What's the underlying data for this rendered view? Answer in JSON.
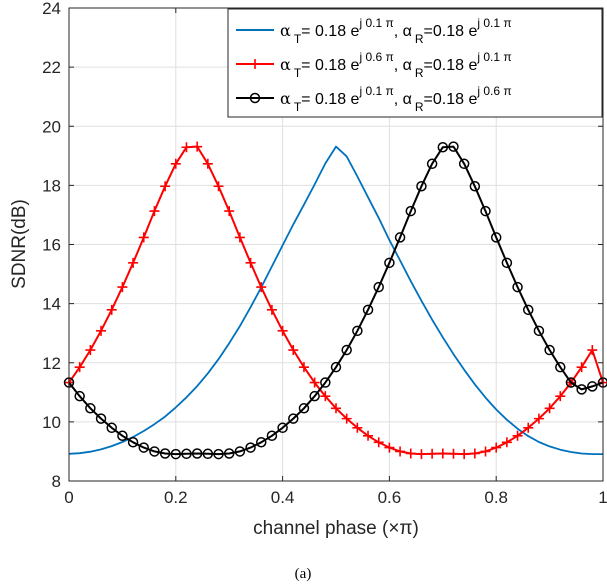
{
  "chart_data": {
    "type": "line",
    "xlabel": "channel phase (×π)",
    "ylabel": "SDNR(dB)",
    "caption": "(a)",
    "xlim": [
      0,
      1
    ],
    "ylim": [
      8,
      24
    ],
    "x_ticks": [
      "0",
      "0.2",
      "0.4",
      "0.6",
      "0.8",
      "1"
    ],
    "y_ticks": [
      "8",
      "10",
      "12",
      "14",
      "16",
      "18",
      "20",
      "22",
      "24"
    ],
    "grid": true,
    "legend_position": "top-right",
    "legend": [
      {
        "alpha": "α",
        "sub1": "T",
        "mid": "= 0.18 e",
        "sup1": "j 0.1 π",
        "sep": ", α",
        "sub2": "R",
        "mid2": "=0.18 e",
        "sup2": "j 0.1 π"
      },
      {
        "alpha": "α",
        "sub1": "T",
        "mid": "= 0.18 e",
        "sup1": "j 0.6 π",
        "sep": ", α",
        "sub2": "R",
        "mid2": "=0.18 e",
        "sup2": "j 0.1 π"
      },
      {
        "alpha": "α",
        "sub1": "T",
        "mid": "= 0.18 e",
        "sup1": "j 0.1 π",
        "sep": ", α",
        "sub2": "R",
        "mid2": "=0.18 e",
        "sup2": "j 0.6 π"
      }
    ],
    "x": [
      0,
      0.02,
      0.04,
      0.06,
      0.08,
      0.1,
      0.12,
      0.14,
      0.16,
      0.18,
      0.2,
      0.22,
      0.24,
      0.26,
      0.28,
      0.3,
      0.32,
      0.34,
      0.36,
      0.38,
      0.4,
      0.42,
      0.44,
      0.46,
      0.48,
      0.5,
      0.52,
      0.54,
      0.56,
      0.58,
      0.6,
      0.62,
      0.64,
      0.66,
      0.68,
      0.7,
      0.72,
      0.74,
      0.76,
      0.78,
      0.8,
      0.82,
      0.84,
      0.86,
      0.88,
      0.9,
      0.92,
      0.94,
      0.96,
      0.98,
      1
    ],
    "series": [
      {
        "color": "#0072BD",
        "marker": "none",
        "values": [
          8.92,
          8.94,
          8.99,
          9.07,
          9.18,
          9.32,
          9.49,
          9.69,
          9.92,
          10.18,
          10.49,
          10.83,
          11.21,
          11.64,
          12.12,
          12.66,
          13.24,
          13.88,
          14.55,
          15.26,
          15.97,
          16.68,
          17.35,
          18.03,
          18.74,
          19.31,
          18.98,
          18.3,
          17.6,
          16.9,
          16.15,
          15.46,
          14.76,
          14.1,
          13.46,
          12.86,
          12.29,
          11.76,
          11.27,
          10.82,
          10.42,
          10.07,
          9.77,
          9.52,
          9.32,
          9.17,
          9.06,
          8.98,
          8.93,
          8.91,
          8.91
        ]
      },
      {
        "color": "#FF0000",
        "marker": "plus",
        "values": [
          11.33,
          11.85,
          12.43,
          13.08,
          13.79,
          14.56,
          15.38,
          16.24,
          17.13,
          17.97,
          18.73,
          19.29,
          19.31,
          18.73,
          17.97,
          17.13,
          16.24,
          15.38,
          14.56,
          13.79,
          13.08,
          12.43,
          11.85,
          11.33,
          10.87,
          10.46,
          10.11,
          9.8,
          9.53,
          9.31,
          9.13,
          9.0,
          8.93,
          8.91,
          8.92,
          8.93,
          8.92,
          8.91,
          8.93,
          9.0,
          9.13,
          9.31,
          9.53,
          9.8,
          10.11,
          10.46,
          10.87,
          11.33,
          11.85,
          12.43,
          11.33
        ]
      },
      {
        "color": "#000000",
        "marker": "circle",
        "values": [
          11.33,
          10.87,
          10.46,
          10.11,
          9.8,
          9.53,
          9.31,
          9.13,
          9.0,
          8.93,
          8.91,
          8.92,
          8.93,
          8.92,
          8.91,
          8.93,
          9.0,
          9.13,
          9.31,
          9.53,
          9.8,
          10.11,
          10.46,
          10.87,
          11.33,
          11.85,
          12.43,
          13.08,
          13.79,
          14.56,
          15.38,
          16.24,
          17.13,
          17.97,
          18.73,
          19.29,
          19.31,
          18.73,
          17.97,
          17.13,
          16.24,
          15.38,
          14.56,
          13.79,
          13.08,
          12.43,
          11.85,
          11.33,
          11.1,
          11.2,
          11.33
        ]
      }
    ]
  }
}
